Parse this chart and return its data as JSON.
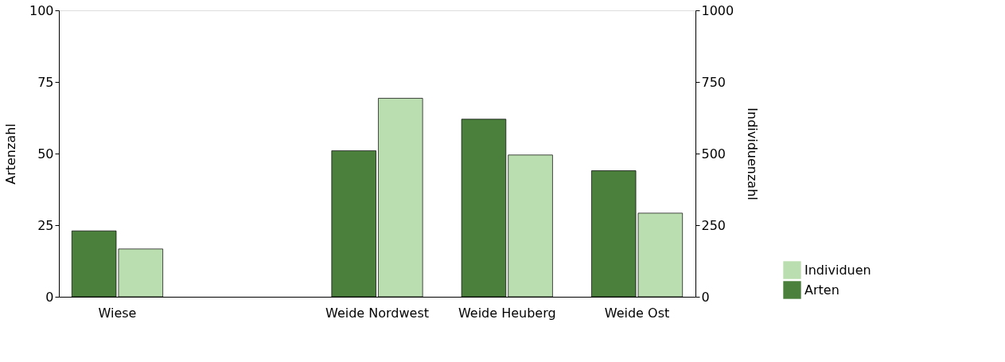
{
  "chart_data": {
    "type": "bar",
    "categories": [
      "Wiese",
      null,
      "Weide Nordwest",
      "Weide Heuberg",
      "Weide Ost"
    ],
    "ylabel": "Artenzahl",
    "y2label": "Individuenzahl",
    "ylim": [
      0,
      100
    ],
    "yticks": [
      0,
      25,
      50,
      75,
      100
    ],
    "y2lim": [
      0,
      1000
    ],
    "y2ticks": [
      0,
      250,
      500,
      750,
      1000
    ],
    "series": [
      {
        "name": "Arten",
        "color": "#4a7f3c",
        "values": [
          23,
          null,
          51,
          62,
          44
        ]
      },
      {
        "name": "Individuen",
        "color": "#bbdeb0",
        "axis": "y2",
        "values": [
          167,
          null,
          693,
          495,
          292
        ]
      }
    ],
    "grid": false,
    "legend": "bottom right"
  }
}
